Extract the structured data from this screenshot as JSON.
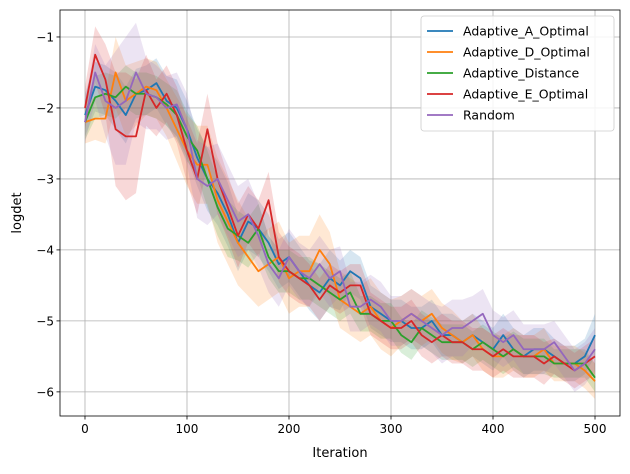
{
  "chart_data": {
    "type": "line",
    "title": "",
    "xlabel": "Iteration",
    "ylabel": "logdet",
    "xlim": [
      -24.5,
      524.5
    ],
    "ylim": [
      -6.34,
      -0.62
    ],
    "xticks": [
      0,
      100,
      200,
      300,
      400,
      500
    ],
    "yticks": [
      -6,
      -5,
      -4,
      -3,
      -2,
      -1
    ],
    "xtick_labels": [
      "0",
      "100",
      "200",
      "300",
      "400",
      "500"
    ],
    "ytick_labels": [
      "−6",
      "−5",
      "−4",
      "−3",
      "−2",
      "−1"
    ],
    "grid": true,
    "legend_placement": "top-right",
    "shaded_band": "mean ± spread",
    "x": [
      0,
      10,
      20,
      30,
      40,
      50,
      60,
      70,
      80,
      90,
      100,
      110,
      120,
      130,
      140,
      150,
      160,
      170,
      180,
      190,
      200,
      210,
      220,
      230,
      240,
      250,
      260,
      270,
      280,
      290,
      300,
      310,
      320,
      330,
      340,
      350,
      360,
      370,
      380,
      390,
      400,
      410,
      420,
      430,
      440,
      450,
      460,
      470,
      480,
      490,
      500
    ],
    "series": [
      {
        "name": "Adaptive_A_Optimal",
        "color": "#1f77b4",
        "values": [
          -2.1,
          -1.7,
          -1.75,
          -1.9,
          -2.1,
          -1.8,
          -1.75,
          -1.65,
          -1.9,
          -2.0,
          -2.3,
          -2.7,
          -3.0,
          -3.2,
          -3.5,
          -3.9,
          -3.6,
          -3.7,
          -3.9,
          -4.2,
          -4.1,
          -4.3,
          -4.5,
          -4.6,
          -4.4,
          -4.5,
          -4.3,
          -4.4,
          -4.8,
          -4.9,
          -5.0,
          -5.0,
          -5.1,
          -5.1,
          -5.0,
          -5.2,
          -5.2,
          -5.3,
          -5.2,
          -5.3,
          -5.4,
          -5.2,
          -5.4,
          -5.5,
          -5.4,
          -5.4,
          -5.5,
          -5.6,
          -5.6,
          -5.5,
          -5.2
        ],
        "spread": [
          0.3,
          0.35,
          0.35,
          0.4,
          0.4,
          0.35,
          0.35,
          0.35,
          0.35,
          0.4,
          0.4,
          0.4,
          0.45,
          0.45,
          0.45,
          0.4,
          0.4,
          0.4,
          0.4,
          0.35,
          0.35,
          0.35,
          0.35,
          0.4,
          0.4,
          0.35,
          0.3,
          0.3,
          0.3,
          0.3,
          0.3,
          0.3,
          0.3,
          0.3,
          0.3,
          0.3,
          0.3,
          0.3,
          0.3,
          0.3,
          0.3,
          0.3,
          0.3,
          0.3,
          0.3,
          0.3,
          0.25,
          0.25,
          0.25,
          0.25,
          0.3
        ]
      },
      {
        "name": "Adaptive_D_Optimal",
        "color": "#ff7f0e",
        "values": [
          -2.2,
          -2.15,
          -2.15,
          -1.5,
          -1.9,
          -1.8,
          -1.7,
          -1.75,
          -2.0,
          -2.3,
          -2.6,
          -2.8,
          -2.8,
          -3.3,
          -3.6,
          -3.9,
          -4.1,
          -4.3,
          -4.2,
          -4.1,
          -4.4,
          -4.3,
          -4.3,
          -4.0,
          -4.2,
          -4.7,
          -4.8,
          -4.9,
          -4.8,
          -5.0,
          -5.1,
          -5.0,
          -4.9,
          -5.0,
          -4.9,
          -5.1,
          -5.2,
          -5.3,
          -5.2,
          -5.4,
          -5.5,
          -5.5,
          -5.4,
          -5.5,
          -5.5,
          -5.4,
          -5.6,
          -5.6,
          -5.6,
          -5.7,
          -5.85
        ],
        "spread": [
          0.3,
          0.3,
          0.35,
          0.5,
          0.5,
          0.45,
          0.4,
          0.4,
          0.4,
          0.45,
          0.5,
          0.55,
          0.55,
          0.6,
          0.6,
          0.6,
          0.55,
          0.5,
          0.5,
          0.5,
          0.5,
          0.5,
          0.5,
          0.5,
          0.45,
          0.4,
          0.4,
          0.4,
          0.4,
          0.4,
          0.4,
          0.35,
          0.35,
          0.35,
          0.35,
          0.35,
          0.35,
          0.3,
          0.3,
          0.3,
          0.3,
          0.3,
          0.3,
          0.3,
          0.3,
          0.3,
          0.25,
          0.25,
          0.25,
          0.25,
          0.25
        ]
      },
      {
        "name": "Adaptive_Distance",
        "color": "#2ca02c",
        "values": [
          -2.2,
          -1.85,
          -1.8,
          -1.85,
          -1.7,
          -1.8,
          -1.8,
          -1.85,
          -1.95,
          -2.1,
          -2.4,
          -2.6,
          -3.0,
          -3.4,
          -3.7,
          -3.8,
          -3.9,
          -3.7,
          -4.1,
          -4.3,
          -4.3,
          -4.4,
          -4.4,
          -4.5,
          -4.6,
          -4.7,
          -4.6,
          -4.9,
          -4.9,
          -5.0,
          -5.0,
          -5.2,
          -5.3,
          -5.1,
          -5.2,
          -5.3,
          -5.3,
          -5.3,
          -5.4,
          -5.3,
          -5.4,
          -5.5,
          -5.4,
          -5.5,
          -5.5,
          -5.5,
          -5.6,
          -5.6,
          -5.6,
          -5.6,
          -5.8
        ],
        "spread": [
          0.25,
          0.3,
          0.3,
          0.3,
          0.3,
          0.3,
          0.3,
          0.3,
          0.3,
          0.35,
          0.35,
          0.35,
          0.4,
          0.4,
          0.4,
          0.35,
          0.35,
          0.35,
          0.3,
          0.3,
          0.3,
          0.3,
          0.3,
          0.3,
          0.3,
          0.3,
          0.3,
          0.25,
          0.25,
          0.25,
          0.25,
          0.25,
          0.25,
          0.25,
          0.25,
          0.25,
          0.25,
          0.25,
          0.25,
          0.25,
          0.25,
          0.25,
          0.25,
          0.25,
          0.25,
          0.25,
          0.2,
          0.2,
          0.2,
          0.2,
          0.2
        ]
      },
      {
        "name": "Adaptive_E_Optimal",
        "color": "#d62728",
        "values": [
          -2.0,
          -1.25,
          -1.6,
          -2.3,
          -2.4,
          -2.4,
          -1.75,
          -2.0,
          -1.8,
          -2.1,
          -2.6,
          -3.0,
          -2.3,
          -3.0,
          -3.4,
          -3.8,
          -3.5,
          -3.7,
          -3.3,
          -4.1,
          -4.3,
          -4.4,
          -4.5,
          -4.7,
          -4.5,
          -4.6,
          -4.5,
          -4.5,
          -4.9,
          -5.0,
          -5.1,
          -5.1,
          -5.0,
          -5.2,
          -5.3,
          -5.2,
          -5.3,
          -5.3,
          -5.4,
          -5.4,
          -5.5,
          -5.4,
          -5.5,
          -5.5,
          -5.5,
          -5.6,
          -5.5,
          -5.6,
          -5.7,
          -5.6,
          -5.5
        ],
        "spread": [
          0.3,
          0.4,
          0.5,
          0.8,
          0.9,
          0.8,
          0.5,
          0.4,
          0.4,
          0.4,
          0.45,
          0.5,
          0.5,
          0.5,
          0.45,
          0.45,
          0.4,
          0.4,
          0.4,
          0.35,
          0.35,
          0.35,
          0.3,
          0.3,
          0.3,
          0.3,
          0.3,
          0.3,
          0.3,
          0.3,
          0.3,
          0.3,
          0.3,
          0.3,
          0.3,
          0.3,
          0.3,
          0.3,
          0.3,
          0.3,
          0.3,
          0.3,
          0.3,
          0.3,
          0.3,
          0.3,
          0.25,
          0.25,
          0.25,
          0.25,
          0.25
        ]
      },
      {
        "name": "Random",
        "color": "#9467bd",
        "values": [
          -2.2,
          -1.5,
          -1.9,
          -2.0,
          -1.9,
          -1.5,
          -1.8,
          -1.85,
          -2.0,
          -1.95,
          -2.3,
          -3.0,
          -3.1,
          -3.0,
          -3.3,
          -3.6,
          -3.5,
          -3.8,
          -4.2,
          -4.4,
          -4.1,
          -4.3,
          -4.4,
          -4.2,
          -4.4,
          -4.3,
          -4.8,
          -4.8,
          -4.7,
          -4.8,
          -5.0,
          -5.0,
          -4.9,
          -5.0,
          -5.1,
          -5.2,
          -5.1,
          -5.1,
          -5.0,
          -4.9,
          -5.2,
          -5.3,
          -5.2,
          -5.4,
          -5.4,
          -5.4,
          -5.3,
          -5.5,
          -5.7,
          -5.6,
          -5.4
        ],
        "spread": [
          0.3,
          0.4,
          0.5,
          0.8,
          0.9,
          0.7,
          0.5,
          0.45,
          0.45,
          0.45,
          0.5,
          0.55,
          0.55,
          0.5,
          0.5,
          0.5,
          0.5,
          0.45,
          0.4,
          0.4,
          0.4,
          0.4,
          0.4,
          0.4,
          0.4,
          0.35,
          0.35,
          0.35,
          0.35,
          0.35,
          0.35,
          0.35,
          0.35,
          0.35,
          0.35,
          0.4,
          0.4,
          0.4,
          0.35,
          0.35,
          0.35,
          0.35,
          0.35,
          0.35,
          0.35,
          0.35,
          0.3,
          0.3,
          0.3,
          0.3,
          0.3
        ]
      }
    ]
  }
}
